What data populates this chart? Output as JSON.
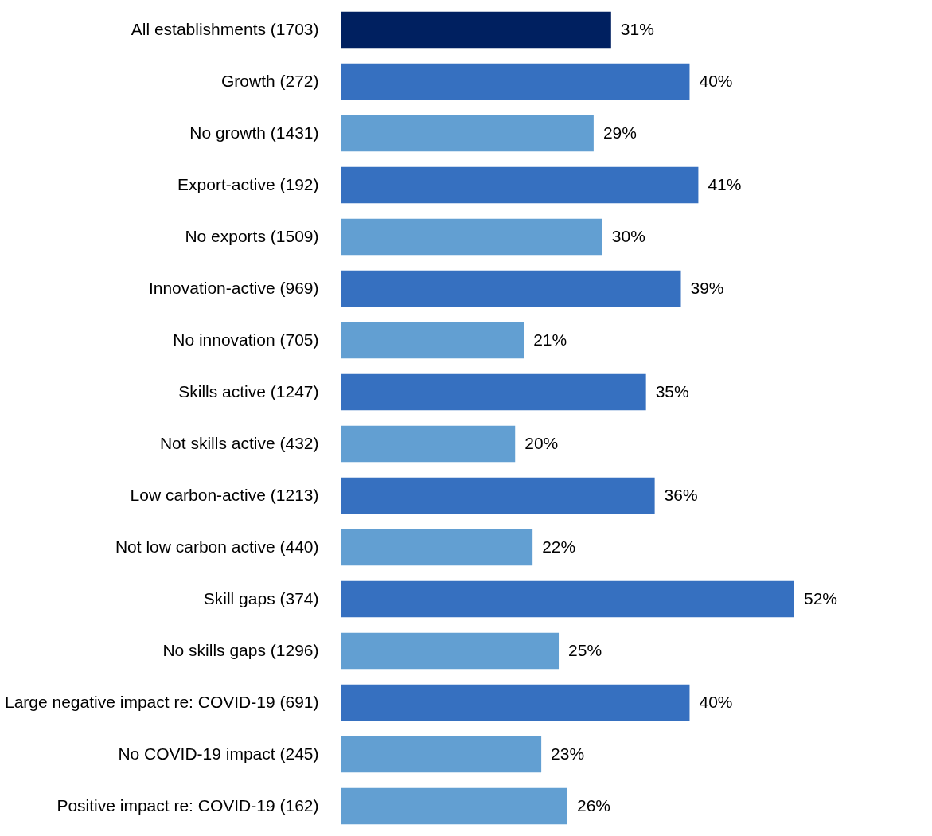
{
  "chart_data": {
    "type": "bar",
    "orientation": "horizontal",
    "categories": [
      "All establishments (1703)",
      "Growth (272)",
      "No growth (1431)",
      "Export-active (192)",
      "No exports (1509)",
      "Innovation-active (969)",
      "No innovation (705)",
      "Skills active (1247)",
      "Not skills active (432)",
      "Low carbon-active (1213)",
      "Not low carbon active (440)",
      "Skill gaps (374)",
      "No skills gaps (1296)",
      "Large negative impact re: COVID-19 (691)",
      "No COVID-19 impact (245)",
      "Positive impact re: COVID-19 (162)"
    ],
    "values": [
      31,
      40,
      29,
      41,
      30,
      39,
      21,
      35,
      20,
      36,
      22,
      52,
      25,
      40,
      23,
      26
    ],
    "value_labels": [
      "31%",
      "40%",
      "29%",
      "41%",
      "30%",
      "39%",
      "21%",
      "35%",
      "20%",
      "36%",
      "22%",
      "52%",
      "25%",
      "40%",
      "23%",
      "26%"
    ],
    "colors": [
      "#002060",
      "#3670c0",
      "#629fd2",
      "#3670c0",
      "#629fd2",
      "#3670c0",
      "#629fd2",
      "#3670c0",
      "#629fd2",
      "#3670c0",
      "#629fd2",
      "#3670c0",
      "#629fd2",
      "#3670c0",
      "#629fd2",
      "#629fd2"
    ],
    "data_labels": false
  }
}
